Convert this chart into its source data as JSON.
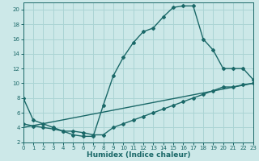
{
  "xlabel": "Humidex (Indice chaleur)",
  "bg_color": "#cce8e8",
  "grid_color": "#aad4d4",
  "line_color": "#1a6868",
  "line1_x": [
    0,
    1,
    2,
    3,
    4,
    5,
    6,
    7,
    8,
    9,
    10,
    11,
    12,
    13,
    14,
    15,
    16,
    17,
    18,
    19,
    20,
    21,
    22,
    23
  ],
  "line1_y": [
    8,
    5,
    4.5,
    4,
    3.5,
    3.0,
    2.8,
    2.8,
    7.0,
    11.0,
    13.5,
    15.5,
    17.0,
    17.5,
    19.0,
    20.3,
    20.5,
    20.5,
    16.0,
    14.5,
    12.0,
    12.0,
    12.0,
    10.5
  ],
  "line2_x": [
    0,
    1,
    2,
    3,
    4,
    5,
    6,
    7,
    8,
    9,
    10,
    11,
    12,
    13,
    14,
    15,
    16,
    17,
    18,
    19,
    20,
    21,
    22,
    23
  ],
  "line2_y": [
    4.5,
    4.2,
    4.0,
    3.8,
    3.5,
    3.5,
    3.3,
    3.0,
    3.0,
    4.0,
    4.5,
    5.0,
    5.5,
    6.0,
    6.5,
    7.0,
    7.5,
    8.0,
    8.5,
    9.0,
    9.5,
    9.5,
    9.8,
    10.0
  ],
  "line3_x": [
    0,
    23
  ],
  "line3_y": [
    4.0,
    10.0
  ],
  "xlim": [
    0,
    23
  ],
  "ylim": [
    2,
    21
  ],
  "yticks": [
    2,
    4,
    6,
    8,
    10,
    12,
    14,
    16,
    18,
    20
  ],
  "xticks": [
    0,
    1,
    2,
    3,
    4,
    5,
    6,
    7,
    8,
    9,
    10,
    11,
    12,
    13,
    14,
    15,
    16,
    17,
    18,
    19,
    20,
    21,
    22,
    23
  ]
}
